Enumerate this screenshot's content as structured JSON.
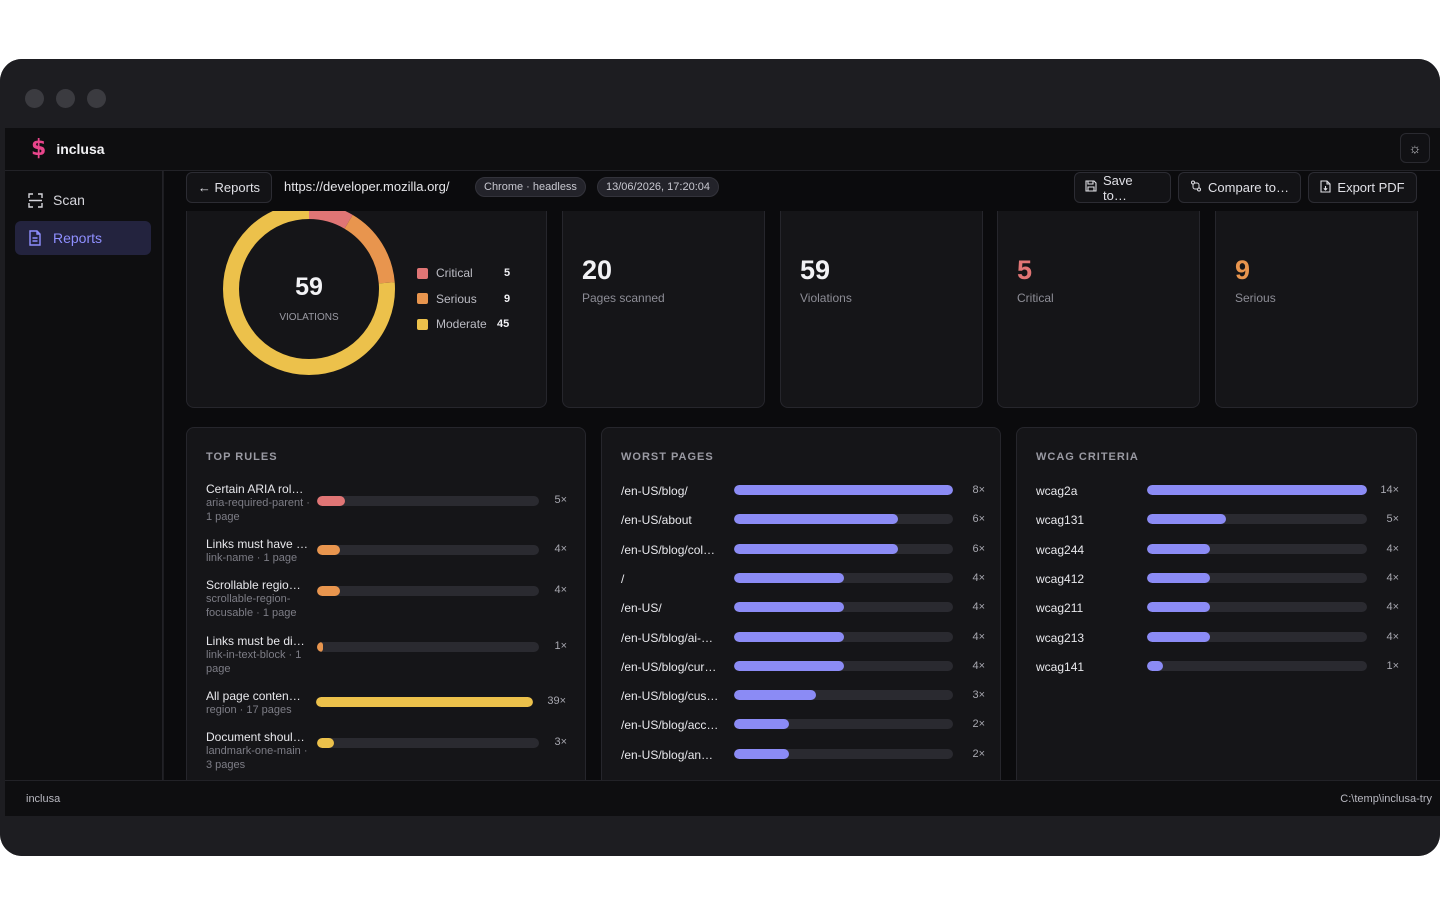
{
  "brand": {
    "name": "inclusa",
    "logo_glyph": "$"
  },
  "nav": [
    {
      "label": "Scan",
      "icon": "scan-icon",
      "active": false
    },
    {
      "label": "Reports",
      "icon": "document-icon",
      "active": true
    }
  ],
  "toolbar": {
    "back_label": "← Reports",
    "url": "https://developer.mozilla.org/",
    "browser_pill": "Chrome · headless",
    "date_pill": "13/06/2026, 17:20:04",
    "save_label": "Save to…",
    "compare_label": "Compare to…",
    "export_label": "Export PDF"
  },
  "donut": {
    "total": "59",
    "total_label": "VIOLATIONS",
    "segments": [
      {
        "name": "Critical",
        "value": 5,
        "color": "#e07575"
      },
      {
        "name": "Serious",
        "value": 9,
        "color": "#e8954e"
      },
      {
        "name": "Moderate",
        "value": 45,
        "color": "#ecc14b"
      }
    ]
  },
  "stats": [
    {
      "value": "20",
      "label": "Pages scanned",
      "color": "#f2f2f5"
    },
    {
      "value": "59",
      "label": "Violations",
      "color": "#f2f2f5"
    },
    {
      "value": "5",
      "label": "Critical",
      "color": "#e07575"
    },
    {
      "value": "9",
      "label": "Serious",
      "color": "#e8954e"
    }
  ],
  "top_rules": {
    "title": "TOP RULES",
    "max": 39,
    "items": [
      {
        "name": "Certain ARIA rol…",
        "sub": "aria-required-parent · 1 page",
        "value": 5,
        "count": "5×",
        "color": "#e07575"
      },
      {
        "name": "Links must have …",
        "sub": "link-name · 1 page",
        "value": 4,
        "count": "4×",
        "color": "#e8954e"
      },
      {
        "name": "Scrollable regio…",
        "sub": "scrollable-region-focusable · 1 page",
        "value": 4,
        "count": "4×",
        "color": "#e8954e"
      },
      {
        "name": "Links must be di…",
        "sub": "link-in-text-block · 1 page",
        "value": 1,
        "count": "1×",
        "color": "#e8954e"
      },
      {
        "name": "All page conten…",
        "sub": "region · 17 pages",
        "value": 39,
        "count": "39×",
        "color": "#ecc14b"
      },
      {
        "name": "Document shoul…",
        "sub": "landmark-one-main · 3 pages",
        "value": 3,
        "count": "3×",
        "color": "#ecc14b"
      }
    ]
  },
  "worst_pages": {
    "title": "WORST PAGES",
    "max": 8,
    "color": "#8b8bf5",
    "items": [
      {
        "name": "/en-US/blog/",
        "value": 8,
        "count": "8×"
      },
      {
        "name": "/en-US/about",
        "value": 6,
        "count": "6×"
      },
      {
        "name": "/en-US/blog/col…",
        "value": 6,
        "count": "6×"
      },
      {
        "name": "/",
        "value": 4,
        "count": "4×"
      },
      {
        "name": "/en-US/",
        "value": 4,
        "count": "4×"
      },
      {
        "name": "/en-US/blog/ai-…",
        "value": 4,
        "count": "4×"
      },
      {
        "name": "/en-US/blog/cur…",
        "value": 4,
        "count": "4×"
      },
      {
        "name": "/en-US/blog/cus…",
        "value": 3,
        "count": "3×"
      },
      {
        "name": "/en-US/blog/acc…",
        "value": 2,
        "count": "2×"
      },
      {
        "name": "/en-US/blog/an…",
        "value": 2,
        "count": "2×"
      }
    ]
  },
  "wcag": {
    "title": "WCAG CRITERIA",
    "max": 14,
    "color": "#8b8bf5",
    "items": [
      {
        "name": "wcag2a",
        "value": 14,
        "count": "14×"
      },
      {
        "name": "wcag131",
        "value": 5,
        "count": "5×"
      },
      {
        "name": "wcag244",
        "value": 4,
        "count": "4×"
      },
      {
        "name": "wcag412",
        "value": 4,
        "count": "4×"
      },
      {
        "name": "wcag211",
        "value": 4,
        "count": "4×"
      },
      {
        "name": "wcag213",
        "value": 4,
        "count": "4×"
      },
      {
        "name": "wcag141",
        "value": 1,
        "count": "1×"
      }
    ]
  },
  "footer": {
    "left": "inclusa",
    "right": "C:\\temp\\inclusa-try"
  }
}
